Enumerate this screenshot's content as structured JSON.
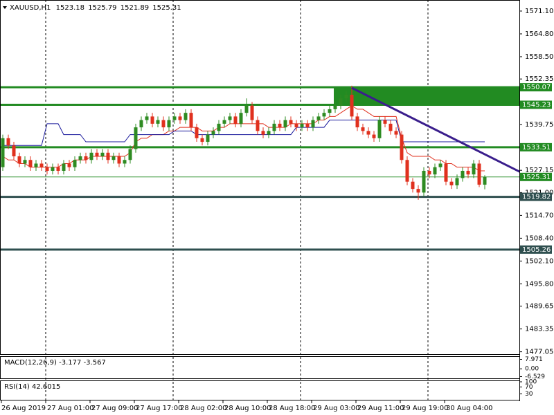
{
  "chart_data": {
    "type": "candlestick",
    "symbol": "XAUUSD,H1",
    "categories": [
      "26 Aug 2019",
      null,
      null,
      null,
      null,
      null,
      null,
      null,
      "27 Aug 01:00",
      null,
      null,
      null,
      null,
      null,
      null,
      null,
      "27 Aug 09:00",
      null,
      null,
      null,
      null,
      null,
      null,
      null,
      "27 Aug 17:00",
      null,
      null,
      null,
      null,
      null,
      null,
      null,
      "28 Aug 02:00",
      null,
      null,
      null,
      null,
      null,
      null,
      null,
      "28 Aug 10:00",
      null,
      null,
      null,
      null,
      null,
      null,
      null,
      "28 Aug 18:00",
      null,
      null,
      null,
      null,
      null,
      null,
      null,
      "29 Aug 03:00",
      null,
      null,
      null,
      null,
      null,
      null,
      null,
      "29 Aug 11:00",
      null,
      null,
      null,
      null,
      null,
      null,
      null,
      "29 Aug 19:00",
      null,
      null,
      null,
      null,
      null,
      null,
      null,
      "30 Aug 04:00",
      null,
      null,
      null,
      null,
      null,
      null,
      null
    ],
    "open": [
      1528,
      1536,
      1534,
      1531,
      1529,
      1530,
      1528,
      1529,
      1528,
      1527,
      1528,
      1527,
      1529,
      1528,
      1530,
      1531,
      1530,
      1532,
      1531,
      1532,
      1530,
      1531,
      1529,
      1530,
      1533,
      1539,
      1541,
      1542,
      1540,
      1541,
      1539,
      1541,
      1542,
      1541,
      1543,
      1539,
      1536,
      1535,
      1537,
      1538,
      1540,
      1541,
      1542,
      1540,
      1543,
      1545,
      1541,
      1538,
      1537,
      1538,
      1540,
      1539,
      1541,
      1540,
      1539,
      1540,
      1539,
      1541,
      1542,
      1543,
      1544,
      1545,
      1547,
      1548,
      1542,
      1539,
      1538,
      1537,
      1536,
      1541,
      1540,
      1538,
      1537,
      1530,
      1524,
      1522,
      1521,
      1527,
      1526,
      1528,
      1529,
      1524,
      1523,
      1525,
      1527,
      1526,
      1529,
      1523.18
    ],
    "high": [
      1537,
      1537,
      1535,
      1532,
      1531,
      1531,
      1530,
      1530,
      1529,
      1529,
      1529,
      1530,
      1530,
      1531,
      1532,
      1532,
      1533,
      1533,
      1533,
      1533,
      1532,
      1532,
      1531,
      1534,
      1540,
      1542,
      1543,
      1543,
      1542,
      1542,
      1542,
      1543,
      1543,
      1544,
      1544,
      1540,
      1537,
      1538,
      1539,
      1541,
      1542,
      1543,
      1543,
      1544,
      1547,
      1546,
      1542,
      1539,
      1539,
      1541,
      1541,
      1542,
      1542,
      1541,
      1541,
      1541,
      1542,
      1543,
      1544,
      1545,
      1546,
      1548,
      1549,
      1550.5,
      1543,
      1540,
      1539,
      1538,
      1542,
      1542,
      1541,
      1539,
      1538,
      1531,
      1525,
      1523,
      1528,
      1528,
      1529,
      1530,
      1530,
      1525,
      1526,
      1528,
      1528,
      1530,
      1530,
      1525.79
    ],
    "low": [
      1527,
      1533,
      1530,
      1528,
      1528,
      1527,
      1527,
      1527,
      1526,
      1526,
      1526,
      1526,
      1527,
      1527,
      1529,
      1529,
      1529,
      1530,
      1530,
      1529,
      1529,
      1528,
      1528,
      1529,
      1532,
      1538,
      1540,
      1539,
      1539,
      1538,
      1538,
      1540,
      1540,
      1540,
      1538,
      1535,
      1534,
      1534,
      1536,
      1537,
      1539,
      1540,
      1539,
      1539,
      1542,
      1540,
      1537,
      1536,
      1536,
      1537,
      1538,
      1538,
      1539,
      1538,
      1538,
      1538,
      1538,
      1540,
      1541,
      1542,
      1543,
      1544,
      1546,
      1541,
      1538,
      1537,
      1536,
      1535,
      1535,
      1539,
      1537,
      1536,
      1529,
      1523,
      1521,
      1519,
      1520,
      1525,
      1525,
      1527,
      1523,
      1522,
      1522,
      1524,
      1525,
      1525,
      1522.5,
      1521.89
    ],
    "close": [
      1536,
      1534,
      1531,
      1529,
      1530,
      1528,
      1529,
      1528,
      1527,
      1528,
      1527,
      1529,
      1528,
      1530,
      1531,
      1530,
      1532,
      1531,
      1532,
      1530,
      1531,
      1529,
      1530,
      1533,
      1539,
      1541,
      1542,
      1540,
      1541,
      1539,
      1541,
      1542,
      1541,
      1543,
      1539,
      1536,
      1535,
      1537,
      1538,
      1540,
      1541,
      1542,
      1540,
      1543,
      1545,
      1541,
      1538,
      1537,
      1538,
      1540,
      1539,
      1541,
      1540,
      1539,
      1540,
      1539,
      1541,
      1542,
      1543,
      1544,
      1545,
      1547,
      1548,
      1542,
      1539,
      1538,
      1537,
      1536,
      1541,
      1540,
      1538,
      1537,
      1530,
      1524,
      1522,
      1521,
      1527,
      1526,
      1528,
      1529,
      1524,
      1523,
      1525,
      1527,
      1526,
      1529,
      1523.18,
      1525.31
    ],
    "up_color": "#2e8b22",
    "down_color": "#e0301e",
    "indicators": [
      {
        "color": "#e0301e",
        "values": [
          1531,
          1530,
          1530,
          1529,
          1529,
          1528,
          1528,
          1528,
          1528,
          1528,
          1528,
          1529,
          1529,
          1530,
          1530,
          1530,
          1531,
          1531,
          1531,
          1531,
          1531,
          1531,
          1531,
          1532,
          1535,
          1536,
          1536,
          1537,
          1537,
          1537,
          1538,
          1538,
          1539,
          1539,
          1539,
          1539,
          1538,
          1538,
          1538,
          1539,
          1539,
          1540,
          1540,
          1540,
          1540,
          1540,
          1540,
          1540,
          1539,
          1539,
          1539,
          1539,
          1540,
          1540,
          1540,
          1540,
          1540,
          1541,
          1541,
          1542,
          1542,
          1543,
          1544,
          1545,
          1544,
          1544,
          1543,
          1542,
          1542,
          1542,
          1542,
          1542,
          1536,
          1532,
          1531,
          1531,
          1531,
          1531,
          1530,
          1530,
          1529,
          1529,
          1528,
          1528,
          1528,
          1528,
          1527,
          1527
        ]
      },
      {
        "color": "#1a1a9c",
        "values": [
          1534,
          1534,
          1534,
          1534,
          1534,
          1534,
          1534,
          1534,
          1540,
          1540,
          1540,
          1537,
          1537,
          1537,
          1537,
          1535,
          1535,
          1535,
          1535,
          1535,
          1535,
          1535,
          1535,
          1537,
          1537,
          1537,
          1537,
          1537,
          1537,
          1537,
          1537,
          1538,
          1538,
          1538,
          1538,
          1537,
          1537,
          1537,
          1537,
          1537,
          1537,
          1537,
          1537,
          1537,
          1537,
          1537,
          1537,
          1537,
          1537,
          1537,
          1537,
          1537,
          1537,
          1539,
          1539,
          1539,
          1539,
          1539,
          1539,
          1541,
          1541,
          1541,
          1541,
          1541,
          1541,
          1541,
          1541,
          1541,
          1541,
          1541,
          1541,
          1541,
          1535,
          1535,
          1535,
          1535,
          1535,
          1535,
          1535,
          1535,
          1535,
          1535,
          1535,
          1535,
          1535,
          1535,
          1535,
          1535
        ]
      }
    ],
    "levels": [
      {
        "value": 1550.07,
        "color": "#228b22"
      },
      {
        "value": 1545.23,
        "color": "#228b22"
      },
      {
        "value": 1533.51,
        "color": "#228b22"
      },
      {
        "value": 1519.82,
        "color": "#2f4f4f"
      },
      {
        "value": 1505.26,
        "color": "#2f4f4f"
      }
    ],
    "zone": {
      "start": 60,
      "y": [
        1545.23,
        1550.07
      ],
      "color": "#228b22"
    },
    "trendline": {
      "x": [
        63,
        93.5
      ],
      "y": [
        1549.9,
        1526.6
      ],
      "color": "#3a1e8c"
    },
    "bid_color": "#228b22",
    "period_separators": [
      8,
      31,
      54,
      77
    ],
    "ylim": [
      1476.4,
      1574.15
    ],
    "yticks": [
      {
        "value": 1571.1,
        "label": "1571.10"
      },
      {
        "value": 1564.8,
        "label": "1564.80"
      },
      {
        "value": 1558.5,
        "label": "1558.50"
      },
      1552.35,
      {
        "value": 1539.75,
        "label": "1539.75"
      },
      1527.15,
      {
        "value": 1521,
        "label": "1521.00"
      },
      {
        "value": 1514.7,
        "label": "1514.70"
      },
      {
        "value": 1508.4,
        "label": "1508.40"
      },
      {
        "value": 1502.1,
        "label": "1502.10"
      },
      {
        "value": 1495.8,
        "label": "1495.80"
      },
      1489.65,
      1483.35,
      1477.05
    ],
    "macd": {
      "name": "MACD(12,26,9)",
      "main": -3.177,
      "signal": -3.567,
      "ylim": [
        -8,
        10
      ],
      "yticks": [
        7.971,
        {
          "value": 0,
          "label": "0.00"
        },
        -6.529
      ]
    },
    "rsi": {
      "name": "RSI(14)",
      "value": 42.6015,
      "ylim": [
        0,
        100
      ],
      "yticks": [
        100,
        70,
        30
      ]
    }
  }
}
